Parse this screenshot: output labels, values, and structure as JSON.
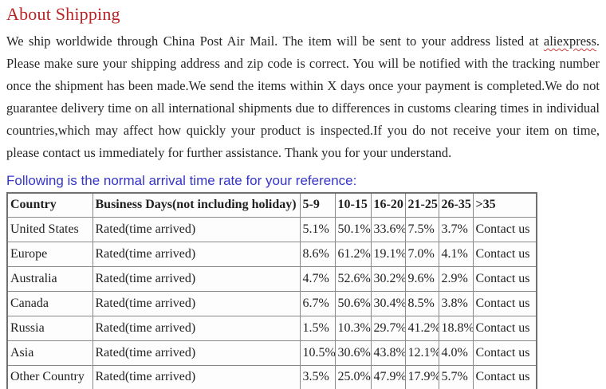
{
  "page": {
    "title": "About Shipping",
    "intro": {
      "before": "We ship worldwide through China Post Air Mail. The item will be sent to your address listed at ",
      "highlight": "aliexpress",
      "after": ". Please make sure your shipping address and zip code is correct. You will be notified with the tracking number once the shipment has been made.We send the items within X days once your payment is completed.We do not guarantee delivery time on all international shipments due to differences in customs clearing times in individual countries,which may affect how quickly your product is inspected.If you do not receive your item on time, please contact us immediately for further assistance. Thank you for your understand."
    },
    "table_caption": "Following is the normal arrival time rate for your reference:"
  },
  "colors": {
    "heading_red": "#b92323",
    "caption_blue": "#3535cb",
    "body_text": "#262626",
    "table_border": "#888888"
  },
  "shipping_table": {
    "headers": [
      "Country",
      "Business Days(not including holiday)",
      "5-9",
      "10-15",
      "16-20",
      "21-25",
      "26-35",
      ">35"
    ],
    "rows": [
      [
        "United States",
        "Rated(time arrived)",
        "5.1%",
        "50.1%",
        "33.6%",
        "7.5%",
        "3.7%",
        "Contact us"
      ],
      [
        "Europe",
        "Rated(time arrived)",
        "8.6%",
        "61.2%",
        "19.1%",
        "7.0%",
        "4.1%",
        "Contact us"
      ],
      [
        "Australia",
        "Rated(time arrived)",
        "4.7%",
        "52.6%",
        "30.2%",
        "9.6%",
        "2.9%",
        "Contact us"
      ],
      [
        "Canada",
        "Rated(time arrived)",
        "6.7%",
        "50.6%",
        "30.4%",
        "8.5%",
        "3.8%",
        "Contact us"
      ],
      [
        "Russia",
        "Rated(time arrived)",
        "1.5%",
        "10.3%",
        "29.7%",
        "41.2%",
        "18.8%",
        "Contact us"
      ],
      [
        "Asia",
        "Rated(time arrived)",
        "10.5%",
        "30.6%",
        "43.8%",
        "12.1%",
        "4.0%",
        "Contact us"
      ],
      [
        "Other Country",
        "Rated(time arrived)",
        "3.5%",
        "25.0%",
        "47.9%",
        "17.9%",
        "5.7%",
        "Contact us"
      ]
    ]
  }
}
